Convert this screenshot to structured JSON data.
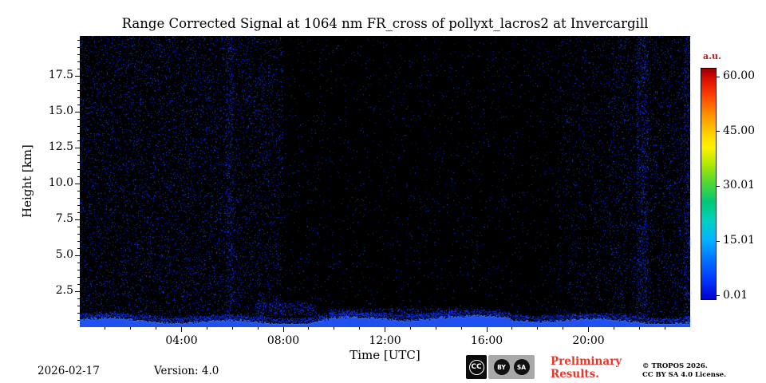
{
  "footer": {
    "date": "2026-02-17",
    "version": "Version: 4.0",
    "license_badge": {
      "cc": "CC",
      "by": "BY",
      "sa": "SA"
    },
    "preliminary_line1": "Preliminary",
    "preliminary_line2": "Results.",
    "copyright_line1": "© TROPOS 2026.",
    "copyright_line2": "CC BY SA 4.0 License."
  },
  "colors": {
    "background": "#000000",
    "noise_blue": "#0a30e8",
    "surface_blue": "#2050f0",
    "surface_crest": "#4f7dff",
    "preliminary_red": "#e8362b",
    "colorbar_unit_label": "#b22222"
  },
  "chart_data": {
    "type": "heatmap",
    "title": "Range Corrected Signal at 1064 nm FR_cross of pollyxt_lacros2 at Invercargill",
    "xlabel": "Time [UTC]",
    "ylabel": "Height [km]",
    "x_range_hours": [
      0,
      24
    ],
    "x_major_ticks": [
      {
        "hour": 4,
        "label": "04:00"
      },
      {
        "hour": 8,
        "label": "08:00"
      },
      {
        "hour": 12,
        "label": "12:00"
      },
      {
        "hour": 16,
        "label": "16:00"
      },
      {
        "hour": 20,
        "label": "20:00"
      }
    ],
    "x_minor_tick_every_hours": 1,
    "y_range_km": [
      0,
      20.3
    ],
    "y_major_ticks": [
      {
        "km": 17.5,
        "label": "17.5"
      },
      {
        "km": 15.0,
        "label": "15.0"
      },
      {
        "km": 12.5,
        "label": "12.5"
      },
      {
        "km": 10.0,
        "label": "10.0"
      },
      {
        "km": 7.5,
        "label": "7.5"
      },
      {
        "km": 5.0,
        "label": "5.0"
      },
      {
        "km": 2.5,
        "label": "2.5"
      }
    ],
    "y_minor_tick_every_km": 0.5,
    "grid": false,
    "colorbar": {
      "label": "a.u.",
      "vmin": 0.01,
      "vmax": 60.0,
      "colormap": "jet",
      "ticks": [
        {
          "value": 60.0,
          "label": "60.00"
        },
        {
          "value": 45.0,
          "label": "45.00"
        },
        {
          "value": 30.01,
          "label": "30.01"
        },
        {
          "value": 15.01,
          "label": "15.01"
        },
        {
          "value": 0.01,
          "label": "0.01"
        }
      ]
    },
    "signal_regions": [
      {
        "name": "dense-noise-00-08",
        "t0": 0.0,
        "t1": 8.0,
        "h0": 0.5,
        "h1": 20.3,
        "density": 0.085,
        "kind": "speckle"
      },
      {
        "name": "sparse-noise-08-19",
        "t0": 8.0,
        "t1": 18.8,
        "h0": 0.5,
        "h1": 20.3,
        "density": 0.016,
        "kind": "speckle"
      },
      {
        "name": "medium-noise-19-21",
        "t0": 18.8,
        "t1": 20.8,
        "h0": 0.5,
        "h1": 20.3,
        "density": 0.045,
        "kind": "speckle"
      },
      {
        "name": "dense-noise-21-24",
        "t0": 20.8,
        "t1": 24.0,
        "h0": 0.5,
        "h1": 20.3,
        "density": 0.08,
        "kind": "speckle"
      },
      {
        "name": "stripe-0600",
        "t0": 5.75,
        "t1": 6.05,
        "h0": 0.5,
        "h1": 20.3,
        "density": 0.16,
        "kind": "speckle"
      },
      {
        "name": "stripe-2200",
        "t0": 21.9,
        "t1": 22.35,
        "h0": 0.5,
        "h1": 20.3,
        "density": 0.17,
        "kind": "speckle"
      },
      {
        "name": "right-edge-column",
        "t0": 23.75,
        "t1": 24.0,
        "h0": 0.5,
        "h1": 20.3,
        "density": 0.16,
        "kind": "speckle"
      },
      {
        "name": "low-cloud-07-09",
        "t0": 6.9,
        "t1": 9.3,
        "h0": 0.8,
        "h1": 1.7,
        "density": 0.3,
        "kind": "speckle"
      },
      {
        "name": "low-cloud-10-15",
        "t0": 9.8,
        "t1": 15.2,
        "h0": 0.7,
        "h1": 1.3,
        "density": 0.22,
        "kind": "speckle"
      },
      {
        "name": "surface-aerosol-layer",
        "t0": 0.0,
        "t1": 24.0,
        "h0": 0.0,
        "h1": 0.55,
        "density": 1.0,
        "kind": "band"
      }
    ]
  }
}
